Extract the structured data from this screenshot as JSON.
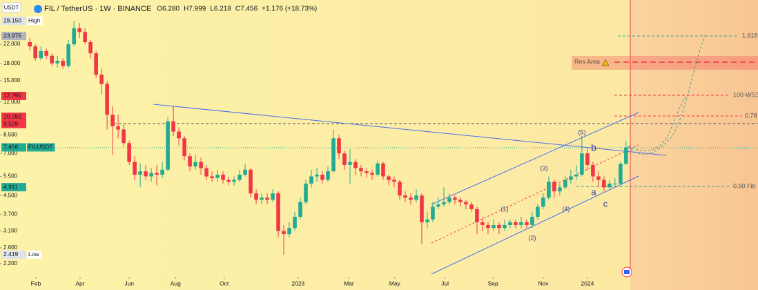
{
  "chart_data": {
    "type": "candlestick",
    "symbol": "FIL / TetherUS · 1W · BINANCE",
    "ohlc_labels": [
      "O6.280",
      "H7.999",
      "L6.218",
      "C7.456",
      "+1.176 (+18.73%)"
    ],
    "currency": "USDT",
    "log_scale": true,
    "up_color": "#22ab94",
    "down_color": "#f23645",
    "x": [
      0,
      1,
      2,
      3,
      4,
      5,
      6,
      7,
      8,
      9,
      10,
      11,
      12,
      13,
      14,
      15,
      16,
      17,
      18,
      19,
      20,
      21,
      22,
      23,
      24,
      25,
      26,
      27,
      28,
      29,
      30,
      31,
      32,
      33,
      34,
      35,
      36,
      37,
      38,
      39,
      40,
      41,
      42,
      43,
      44,
      45,
      46,
      47,
      48,
      49,
      50,
      51,
      52,
      53,
      54,
      55,
      56,
      57,
      58,
      59,
      60,
      61,
      62,
      63,
      64,
      65,
      66,
      67,
      68,
      69,
      70,
      71,
      72,
      73,
      74,
      75,
      76,
      77,
      78,
      79,
      80,
      81,
      82,
      83,
      84,
      85,
      86,
      87,
      88,
      89,
      90,
      91,
      92,
      93,
      94,
      95,
      96,
      97,
      98,
      99,
      100,
      101,
      102,
      103,
      104,
      105,
      106,
      107,
      108
    ],
    "open": [
      22.5,
      21.5,
      19.0,
      20.5,
      19.5,
      18.0,
      18.5,
      17.5,
      22.0,
      26.0,
      25.0,
      22.5,
      20.0,
      16.0,
      14.5,
      10.5,
      9.3,
      9.0,
      7.8,
      6.4,
      5.6,
      5.8,
      5.5,
      5.7,
      5.6,
      5.9,
      9.8,
      8.8,
      8.2,
      6.8,
      6.1,
      6.4,
      6.0,
      5.5,
      5.4,
      5.6,
      5.3,
      5.2,
      5.3,
      5.6,
      5.9,
      4.6,
      4.3,
      4.4,
      4.3,
      4.6,
      3.1,
      3.0,
      3.2,
      3.6,
      4.2,
      5.1,
      5.5,
      5.6,
      5.3,
      5.8,
      8.2,
      7.0,
      6.2,
      6.4,
      6.0,
      5.8,
      5.7,
      5.6,
      6.3,
      5.5,
      5.3,
      5.2,
      4.5,
      4.4,
      4.3,
      4.5,
      3.4,
      3.5,
      4.0,
      4.1,
      4.2,
      4.4,
      4.3,
      4.2,
      4.1,
      3.9,
      3.4,
      3.3,
      3.2,
      3.3,
      3.2,
      3.3,
      3.4,
      3.3,
      3.4,
      3.3,
      3.6,
      4.0,
      4.4,
      5.2,
      4.7,
      4.9,
      5.3,
      5.5,
      5.6,
      7.0,
      6.2,
      5.5,
      5.3,
      4.9,
      5.1,
      5.1,
      6.28
    ],
    "close": [
      21.5,
      19.0,
      20.5,
      19.5,
      18.0,
      18.5,
      17.5,
      22.0,
      26.0,
      25.0,
      22.5,
      20.0,
      16.0,
      14.5,
      10.5,
      9.3,
      9.0,
      7.8,
      6.4,
      5.6,
      5.8,
      5.5,
      5.7,
      5.6,
      5.9,
      9.8,
      8.8,
      8.2,
      6.8,
      6.1,
      6.4,
      6.0,
      5.5,
      5.4,
      5.6,
      5.3,
      5.2,
      5.3,
      5.6,
      5.9,
      4.6,
      4.3,
      4.4,
      4.3,
      4.6,
      3.1,
      3.0,
      3.2,
      3.6,
      4.2,
      5.1,
      5.5,
      5.6,
      5.3,
      5.8,
      8.2,
      7.0,
      6.2,
      6.4,
      6.0,
      5.8,
      5.7,
      5.6,
      6.3,
      5.5,
      5.3,
      5.2,
      4.5,
      4.4,
      4.3,
      4.5,
      3.4,
      3.5,
      4.0,
      4.1,
      4.2,
      4.4,
      4.3,
      4.2,
      4.1,
      3.9,
      3.4,
      3.3,
      3.2,
      3.3,
      3.2,
      3.3,
      3.4,
      3.3,
      3.4,
      3.3,
      3.6,
      4.0,
      4.4,
      5.2,
      4.7,
      4.9,
      5.3,
      5.5,
      5.6,
      7.0,
      6.2,
      5.5,
      5.3,
      4.9,
      5.1,
      5.1,
      6.28,
      7.456
    ],
    "high": [
      23.5,
      22.0,
      21.5,
      21.0,
      20.0,
      19.5,
      19.0,
      23.0,
      28.15,
      27.5,
      26.0,
      23.0,
      20.5,
      17.0,
      15.0,
      11.5,
      10.5,
      9.5,
      8.0,
      6.8,
      6.3,
      6.2,
      6.0,
      6.2,
      6.4,
      10.3,
      11.5,
      9.2,
      8.4,
      7.0,
      6.9,
      6.7,
      6.2,
      5.8,
      5.9,
      5.8,
      5.5,
      5.5,
      5.9,
      6.3,
      6.0,
      4.8,
      4.6,
      4.6,
      4.8,
      4.7,
      3.3,
      3.4,
      3.8,
      4.4,
      5.3,
      5.9,
      6.0,
      5.8,
      6.1,
      9.0,
      8.5,
      7.2,
      7.3,
      6.6,
      6.2,
      6.0,
      5.9,
      6.5,
      6.4,
      5.6,
      5.5,
      5.3,
      4.7,
      4.6,
      4.8,
      4.6,
      3.8,
      4.2,
      4.4,
      4.9,
      4.6,
      4.5,
      4.4,
      4.3,
      4.2,
      4.0,
      3.6,
      3.4,
      3.5,
      3.4,
      3.5,
      3.5,
      3.5,
      3.6,
      3.5,
      3.8,
      4.1,
      4.6,
      5.5,
      5.3,
      5.1,
      5.5,
      5.9,
      6.2,
      8.4,
      7.4,
      6.4,
      5.8,
      5.5,
      5.3,
      5.4,
      6.4,
      7.999
    ],
    "low": [
      20.5,
      18.5,
      18.6,
      18.8,
      17.5,
      17.2,
      17.0,
      17.2,
      21.5,
      23.5,
      22.0,
      19.0,
      15.5,
      13.0,
      9.0,
      6.9,
      8.2,
      7.5,
      6.2,
      5.3,
      4.9,
      5.3,
      5.2,
      5.0,
      5.4,
      5.8,
      8.4,
      7.6,
      6.5,
      5.8,
      5.9,
      5.6,
      5.3,
      5.2,
      5.2,
      5.1,
      5.0,
      5.0,
      5.2,
      5.5,
      4.4,
      4.1,
      4.1,
      4.1,
      4.2,
      2.9,
      2.419,
      2.9,
      3.1,
      3.5,
      4.1,
      4.9,
      5.2,
      5.1,
      5.2,
      5.7,
      6.6,
      5.9,
      5.1,
      5.6,
      5.5,
      5.4,
      5.3,
      5.5,
      5.3,
      5.0,
      4.9,
      4.3,
      4.2,
      4.1,
      4.2,
      2.7,
      3.2,
      3.4,
      3.9,
      4.0,
      4.1,
      4.1,
      4.0,
      3.9,
      3.8,
      3.0,
      3.1,
      3.0,
      3.1,
      3.0,
      3.1,
      3.2,
      3.2,
      3.2,
      3.2,
      3.2,
      3.5,
      3.9,
      4.3,
      4.4,
      4.5,
      4.8,
      5.1,
      5.3,
      5.5,
      5.9,
      5.2,
      4.9,
      4.7,
      4.8,
      4.9,
      5.0,
      6.218
    ],
    "xlim": [
      -5.4,
      131.9
    ],
    "ylim": [
      1.93,
      35
    ],
    "xticks": [
      {
        "value": 1.1,
        "label": "Feb"
      },
      {
        "value": 9.1,
        "label": "Apr"
      },
      {
        "value": 18,
        "label": "Jun"
      },
      {
        "value": 26.4,
        "label": "Aug"
      },
      {
        "value": 35.2,
        "label": "Oct"
      },
      {
        "value": 48.6,
        "label": "2023"
      },
      {
        "value": 57.8,
        "label": "Mar"
      },
      {
        "value": 66.1,
        "label": "May"
      },
      {
        "value": 75.2,
        "label": "Jul"
      },
      {
        "value": 83.9,
        "label": "Sep"
      },
      {
        "value": 93,
        "label": "Nov"
      },
      {
        "value": 101,
        "label": "2024"
      }
    ],
    "yticks": [
      {
        "value": 22,
        "label": "22.000"
      },
      {
        "value": 18,
        "label": "18.000"
      },
      {
        "value": 15,
        "label": "15.000"
      },
      {
        "value": 12,
        "label": "12.000"
      },
      {
        "value": 8.5,
        "label": "8.500"
      },
      {
        "value": 7,
        "label": "7.000"
      },
      {
        "value": 5.5,
        "label": "5.500"
      },
      {
        "value": 4.5,
        "label": "4.500"
      },
      {
        "value": 3.7,
        "label": "3.700"
      },
      {
        "value": 3.1,
        "label": "3.100"
      },
      {
        "value": 2.6,
        "label": "2.600"
      },
      {
        "value": 2.2,
        "label": "2.200"
      }
    ],
    "price_labels": [
      {
        "value": 28.15,
        "label": "28.150",
        "tag": "High",
        "color": "#e0e3eb"
      },
      {
        "value": 23.975,
        "label": "23.975",
        "color": "#b2b5be"
      },
      {
        "value": 12.79,
        "label": "12.790",
        "color": "#f23645"
      },
      {
        "value": 10.282,
        "label": "10.282",
        "color": "#f23645"
      },
      {
        "value": 9.529,
        "label": "9.529",
        "color": "#f23645"
      },
      {
        "value": 7.456,
        "label": "7.456",
        "tag": "FILUSDT",
        "color": "#22ab94"
      },
      {
        "value": 4.911,
        "label": "4.911",
        "color": "#22ab94"
      },
      {
        "value": 2.419,
        "label": "2.419",
        "tag": "Low",
        "color": "#e0e3eb"
      }
    ],
    "fib_labels": [
      "1.618",
      "Res Area",
      "100-WS3",
      "0.78",
      "0.50 Fib"
    ],
    "wave_labels": [
      "(5)",
      "(3)",
      "(1)",
      "(2)",
      "(4)",
      "b",
      "a",
      "c"
    ]
  }
}
